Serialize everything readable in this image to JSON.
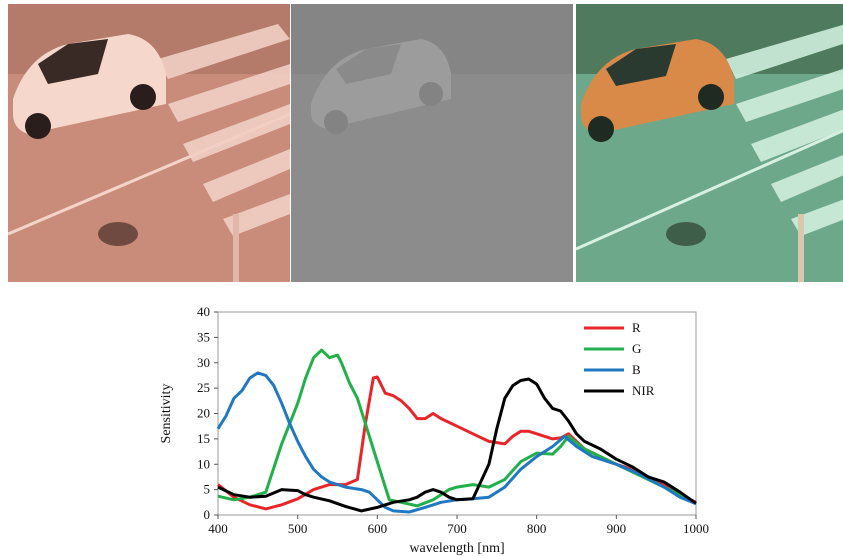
{
  "photos": [
    {
      "id": "rgb-photo",
      "tint": "#e8a48e"
    },
    {
      "id": "nir-photo",
      "tint": "#8e8e8e"
    },
    {
      "id": "false-color-photo",
      "tint": "#6fb08a"
    }
  ],
  "colors": {
    "R": "#e8262a",
    "G": "#22b04b",
    "B": "#1f78c1",
    "NIR": "#000000",
    "axis": "#888888",
    "plot_border": "#9a9a9a"
  },
  "chart_data": {
    "type": "line",
    "title": "",
    "xlabel": "wavelength [nm]",
    "ylabel": "Sensitivity",
    "xlim": [
      400,
      1000
    ],
    "ylim": [
      0,
      40
    ],
    "xticks": [
      400,
      500,
      600,
      700,
      800,
      900,
      1000
    ],
    "yticks": [
      0,
      5,
      10,
      15,
      20,
      25,
      30,
      35,
      40
    ],
    "legend_position": "top-right",
    "grid": false,
    "series": [
      {
        "name": "R",
        "color": "#e8262a",
        "points": [
          [
            400,
            6
          ],
          [
            420,
            3.5
          ],
          [
            440,
            2
          ],
          [
            460,
            1.2
          ],
          [
            480,
            2
          ],
          [
            500,
            3.2
          ],
          [
            520,
            5
          ],
          [
            540,
            6
          ],
          [
            560,
            6
          ],
          [
            575,
            7
          ],
          [
            585,
            18
          ],
          [
            595,
            27
          ],
          [
            600,
            27.2
          ],
          [
            610,
            24
          ],
          [
            620,
            23.5
          ],
          [
            630,
            22.5
          ],
          [
            640,
            21
          ],
          [
            650,
            19
          ],
          [
            660,
            19
          ],
          [
            670,
            20
          ],
          [
            680,
            19
          ],
          [
            700,
            17.5
          ],
          [
            720,
            16
          ],
          [
            740,
            14.5
          ],
          [
            760,
            14
          ],
          [
            770,
            15.5
          ],
          [
            780,
            16.5
          ],
          [
            790,
            16.5
          ],
          [
            800,
            16
          ],
          [
            820,
            15
          ],
          [
            830,
            15.2
          ],
          [
            840,
            16
          ],
          [
            860,
            13
          ],
          [
            880,
            11.5
          ],
          [
            900,
            10
          ],
          [
            920,
            9
          ],
          [
            940,
            7.5
          ],
          [
            960,
            6
          ],
          [
            980,
            4
          ],
          [
            1000,
            2.5
          ]
        ]
      },
      {
        "name": "G",
        "color": "#22b04b",
        "points": [
          [
            400,
            3.7
          ],
          [
            420,
            3
          ],
          [
            440,
            3.5
          ],
          [
            460,
            4.5
          ],
          [
            480,
            14
          ],
          [
            500,
            22
          ],
          [
            510,
            27
          ],
          [
            520,
            31
          ],
          [
            530,
            32.5
          ],
          [
            540,
            31
          ],
          [
            550,
            31.5
          ],
          [
            555,
            30
          ],
          [
            565,
            26
          ],
          [
            575,
            23
          ],
          [
            585,
            18
          ],
          [
            595,
            13
          ],
          [
            605,
            8
          ],
          [
            615,
            3
          ],
          [
            630,
            2.5
          ],
          [
            650,
            1.8
          ],
          [
            670,
            3
          ],
          [
            690,
            5
          ],
          [
            700,
            5.5
          ],
          [
            720,
            6
          ],
          [
            740,
            5.5
          ],
          [
            760,
            7
          ],
          [
            780,
            10.5
          ],
          [
            800,
            12.2
          ],
          [
            820,
            12
          ],
          [
            830,
            13.5
          ],
          [
            840,
            15.5
          ],
          [
            860,
            13
          ],
          [
            880,
            11.5
          ],
          [
            900,
            10
          ],
          [
            920,
            8.5
          ],
          [
            940,
            7
          ],
          [
            960,
            5.5
          ],
          [
            980,
            4
          ],
          [
            1000,
            2.3
          ]
        ]
      },
      {
        "name": "B",
        "color": "#1f78c1",
        "points": [
          [
            400,
            17
          ],
          [
            410,
            19.5
          ],
          [
            420,
            23
          ],
          [
            430,
            24.5
          ],
          [
            440,
            27
          ],
          [
            450,
            28
          ],
          [
            460,
            27.5
          ],
          [
            470,
            25.5
          ],
          [
            480,
            22
          ],
          [
            490,
            18
          ],
          [
            500,
            14.5
          ],
          [
            510,
            11.5
          ],
          [
            520,
            9
          ],
          [
            530,
            7.5
          ],
          [
            540,
            6.5
          ],
          [
            560,
            5.5
          ],
          [
            580,
            5
          ],
          [
            590,
            4.5
          ],
          [
            600,
            3
          ],
          [
            610,
            1.5
          ],
          [
            620,
            0.8
          ],
          [
            640,
            0.6
          ],
          [
            660,
            1.5
          ],
          [
            680,
            2.5
          ],
          [
            700,
            3
          ],
          [
            720,
            3.2
          ],
          [
            740,
            3.5
          ],
          [
            760,
            5.5
          ],
          [
            780,
            9
          ],
          [
            800,
            11.5
          ],
          [
            820,
            13.5
          ],
          [
            835,
            15.5
          ],
          [
            850,
            13.5
          ],
          [
            870,
            11.5
          ],
          [
            900,
            10
          ],
          [
            930,
            8
          ],
          [
            960,
            5.5
          ],
          [
            980,
            3.5
          ],
          [
            1000,
            2.2
          ]
        ]
      },
      {
        "name": "NIR",
        "color": "#000000",
        "points": [
          [
            400,
            5.5
          ],
          [
            420,
            4
          ],
          [
            440,
            3.5
          ],
          [
            460,
            3.7
          ],
          [
            480,
            5
          ],
          [
            500,
            4.8
          ],
          [
            510,
            4
          ],
          [
            520,
            3.5
          ],
          [
            540,
            2.8
          ],
          [
            560,
            1.7
          ],
          [
            580,
            0.8
          ],
          [
            600,
            1.5
          ],
          [
            620,
            2.5
          ],
          [
            640,
            3
          ],
          [
            650,
            3.5
          ],
          [
            660,
            4.5
          ],
          [
            670,
            5
          ],
          [
            680,
            4.5
          ],
          [
            690,
            3.5
          ],
          [
            700,
            3
          ],
          [
            720,
            3.2
          ],
          [
            740,
            10
          ],
          [
            750,
            17
          ],
          [
            760,
            23
          ],
          [
            770,
            25.5
          ],
          [
            780,
            26.5
          ],
          [
            790,
            26.8
          ],
          [
            800,
            25.8
          ],
          [
            810,
            23
          ],
          [
            820,
            21
          ],
          [
            830,
            20.5
          ],
          [
            840,
            18.5
          ],
          [
            850,
            16
          ],
          [
            860,
            14.5
          ],
          [
            880,
            13
          ],
          [
            900,
            11
          ],
          [
            920,
            9.5
          ],
          [
            940,
            7.5
          ],
          [
            960,
            6.5
          ],
          [
            980,
            4.5
          ],
          [
            1000,
            2.3
          ]
        ]
      }
    ]
  }
}
